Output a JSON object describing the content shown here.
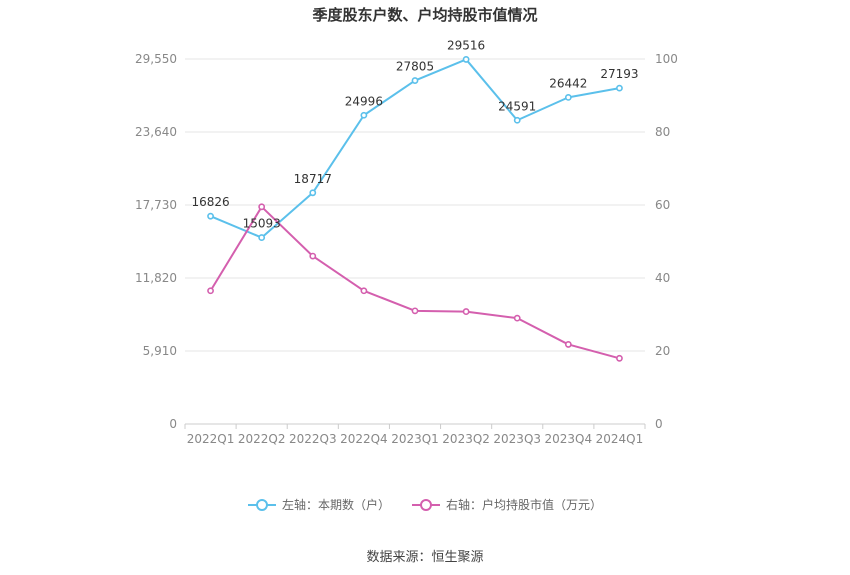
{
  "chart_data": {
    "type": "line",
    "title": "季度股东户数、户均持股市值情况",
    "categories": [
      "2022Q1",
      "2022Q2",
      "2022Q3",
      "2022Q4",
      "2023Q1",
      "2023Q2",
      "2023Q3",
      "2023Q4",
      "2024Q1"
    ],
    "series": [
      {
        "name": "左轴：本期数（户）",
        "axis": "left",
        "color": "#5bc0eb",
        "values": [
          16826,
          15093,
          18717,
          24996,
          27805,
          29516,
          24591,
          26442,
          27193
        ],
        "data_labels": [
          "16826",
          "15093",
          "18717",
          "24996",
          "27805",
          "29516",
          "24591",
          "26442",
          "27193"
        ]
      },
      {
        "name": "右轴：户均持股市值（万元）",
        "axis": "right",
        "color": "#d45fae",
        "values": [
          36.5,
          59.5,
          46.0,
          36.5,
          31.0,
          30.8,
          29.0,
          21.8,
          18.0
        ]
      }
    ],
    "left_axis": {
      "ylim": [
        0,
        29550
      ],
      "ticks": [
        "0",
        "5,910",
        "11,820",
        "17,730",
        "23,640",
        "29,550"
      ]
    },
    "right_axis": {
      "ylim": [
        0,
        100
      ],
      "ticks": [
        "0",
        "20",
        "40",
        "60",
        "80",
        "100"
      ]
    },
    "grid": true,
    "legend_position": "bottom-center"
  },
  "source_text": "数据来源：恒生聚源"
}
